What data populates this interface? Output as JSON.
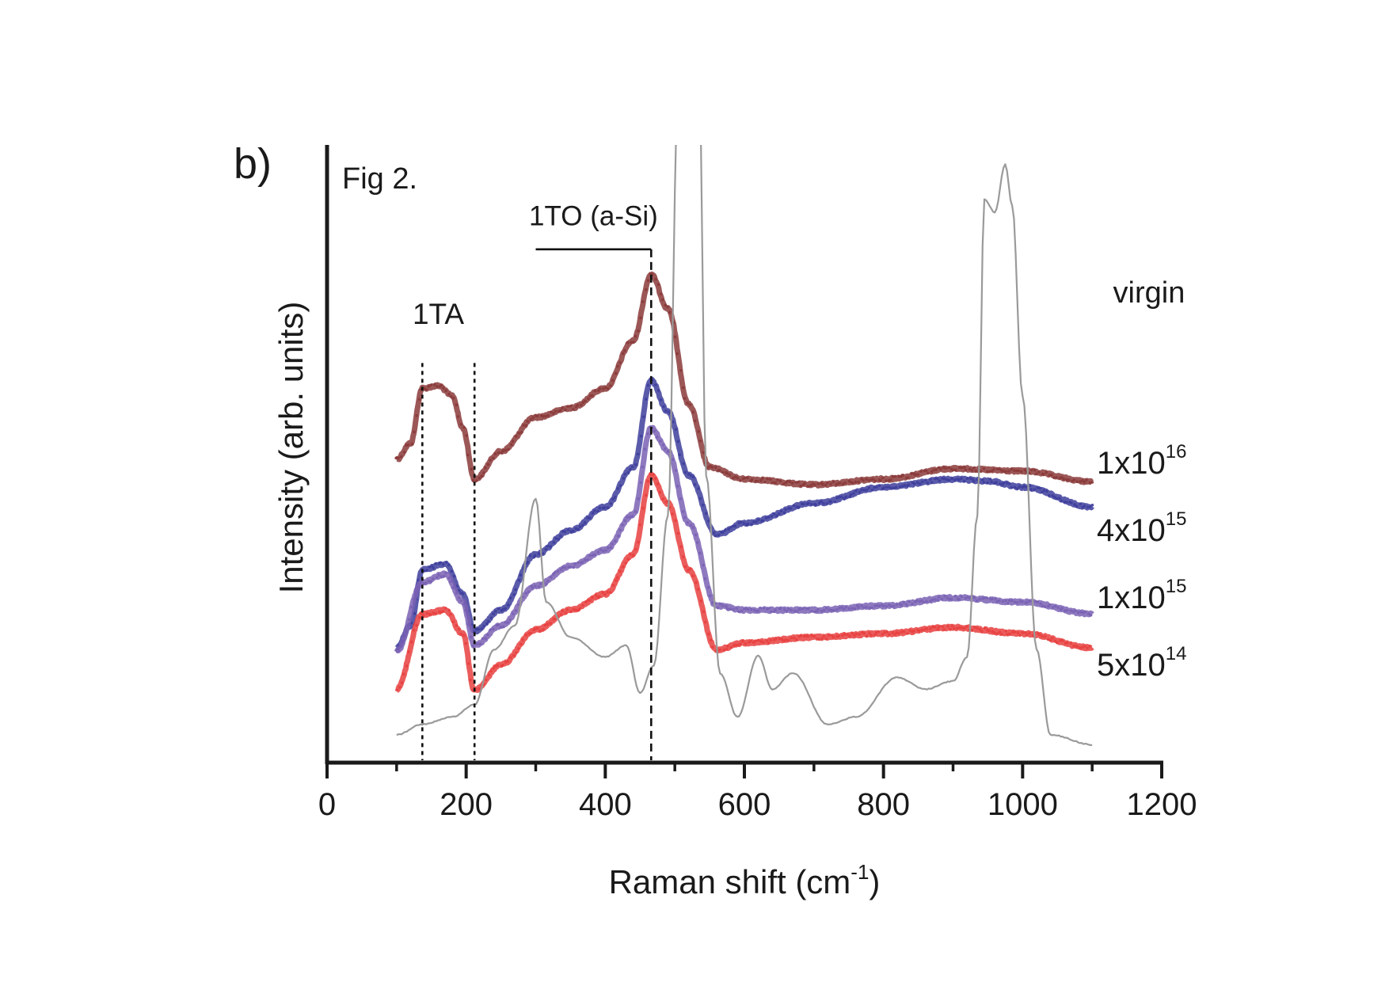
{
  "chart_data": {
    "type": "line",
    "panel_label": "b)",
    "title": "Fig 2.",
    "xlabel": "Raman shift (cm",
    "xlabel_superscript": "-1",
    "xlabel_suffix": ")",
    "ylabel": "Intensity (arb. units)",
    "xlim": [
      0,
      1200
    ],
    "ylim": [
      0,
      100
    ],
    "xticks": [
      0,
      200,
      400,
      600,
      800,
      1000,
      1200
    ],
    "xtick_labels": [
      "0",
      "200",
      "400",
      "600",
      "800",
      "1000",
      "1200"
    ],
    "x_minor_ticks": [
      100,
      300,
      500,
      700,
      900,
      1100
    ],
    "yticks_shown": false,
    "grid": false,
    "legend": "inline labels at right end of curves",
    "annotations": [
      {
        "id": "ta",
        "text": "1TA",
        "x": 160,
        "y": 71,
        "lines": [
          {
            "x": 137,
            "y_top": 64.7,
            "style": "dotted"
          },
          {
            "x": 212,
            "y_top": 64.7,
            "style": "dotted"
          }
        ]
      },
      {
        "id": "to",
        "text": "1TO (a-Si)",
        "x": 383,
        "y": 87,
        "bracket": {
          "x_start": 300,
          "x_end": 466,
          "y": 83.1
        },
        "line": {
          "x": 466,
          "y_top": 83.1,
          "style": "dashed"
        }
      },
      {
        "id": "virgin",
        "text": "virgin",
        "x": 1130,
        "y": 74.5
      }
    ],
    "series": [
      {
        "name": "1x10^16",
        "label_base": "1x10",
        "label_exp": "16",
        "label_y": 46.8,
        "color": "#8b3a3a",
        "style": "markers-thick",
        "x": [
          100,
          120,
          137,
          160,
          180,
          195,
          212,
          250,
          300,
          350,
          400,
          440,
          466,
          490,
          520,
          550,
          600,
          700,
          800,
          900,
          1000,
          1100
        ],
        "y": [
          49.1,
          51.7,
          60.6,
          61.0,
          59.4,
          54.2,
          45.9,
          50.4,
          55.9,
          57.4,
          60.6,
          68.3,
          79.0,
          73.5,
          58.0,
          47.8,
          45.9,
          45.0,
          45.9,
          47.6,
          47.2,
          45.5
        ]
      },
      {
        "name": "4x10^15",
        "label_base": "4x10",
        "label_exp": "15",
        "label_y": 35.9,
        "color": "#3e3e9c",
        "style": "markers-thick",
        "x": [
          100,
          120,
          137,
          170,
          195,
          212,
          250,
          300,
          350,
          400,
          440,
          466,
          490,
          520,
          560,
          600,
          700,
          800,
          900,
          950,
          1000,
          1100
        ],
        "y": [
          18.6,
          22.2,
          31.2,
          32.2,
          27.3,
          21.3,
          24.7,
          33.7,
          37.6,
          41.4,
          47.8,
          61.9,
          56.8,
          46.5,
          36.9,
          38.8,
          42.0,
          44.6,
          45.9,
          45.6,
          44.6,
          41.4
        ]
      },
      {
        "name": "1x10^15",
        "label_base": "1x10",
        "label_exp": "15",
        "label_y": 25.0,
        "color": "#7a62b4",
        "style": "markers-thick",
        "x": [
          100,
          137,
          170,
          195,
          212,
          250,
          300,
          350,
          400,
          440,
          466,
          490,
          520,
          560,
          600,
          700,
          800,
          900,
          1000,
          1100
        ],
        "y": [
          18.0,
          29.2,
          30.5,
          26.0,
          19.0,
          22.2,
          28.6,
          31.8,
          34.4,
          40.1,
          54.2,
          50.4,
          38.8,
          25.4,
          24.7,
          24.7,
          25.4,
          26.7,
          26.0,
          24.1
        ]
      },
      {
        "name": "5x10^14",
        "label_base": "5x10",
        "label_exp": "14",
        "label_y": 14.1,
        "color": "#e8403f",
        "style": "markers-thick",
        "x": [
          100,
          137,
          170,
          195,
          212,
          250,
          300,
          350,
          400,
          440,
          466,
          490,
          520,
          560,
          600,
          700,
          800,
          900,
          1000,
          1100
        ],
        "y": [
          11.9,
          24.0,
          24.7,
          20.9,
          11.7,
          15.8,
          21.5,
          24.7,
          27.3,
          33.7,
          46.5,
          42.0,
          31.2,
          18.3,
          19.4,
          20.3,
          20.9,
          21.9,
          20.9,
          18.6
        ]
      },
      {
        "name": "virgin",
        "color": "#9a9a9a",
        "style": "thin-line",
        "x": [
          100,
          137,
          180,
          212,
          240,
          270,
          300,
          315,
          350,
          400,
          430,
          450,
          470,
          490,
          505,
          520,
          535,
          545,
          565,
          590,
          620,
          640,
          670,
          720,
          760,
          820,
          860,
          900,
          920,
          935,
          945,
          960,
          975,
          985,
          1000,
          1020,
          1040,
          1100
        ],
        "y": [
          4.5,
          6.2,
          7.4,
          9.4,
          18.3,
          22.2,
          42.7,
          26.0,
          20.3,
          17.1,
          19.0,
          11.3,
          15.8,
          40.0,
          110,
          110,
          110,
          46.5,
          14.5,
          7.4,
          17.3,
          11.9,
          14.5,
          6.2,
          7.4,
          13.8,
          11.9,
          13.2,
          17.1,
          40.0,
          91.2,
          89.1,
          96.8,
          90.1,
          59.4,
          18.3,
          4.5,
          2.9
        ]
      }
    ]
  }
}
